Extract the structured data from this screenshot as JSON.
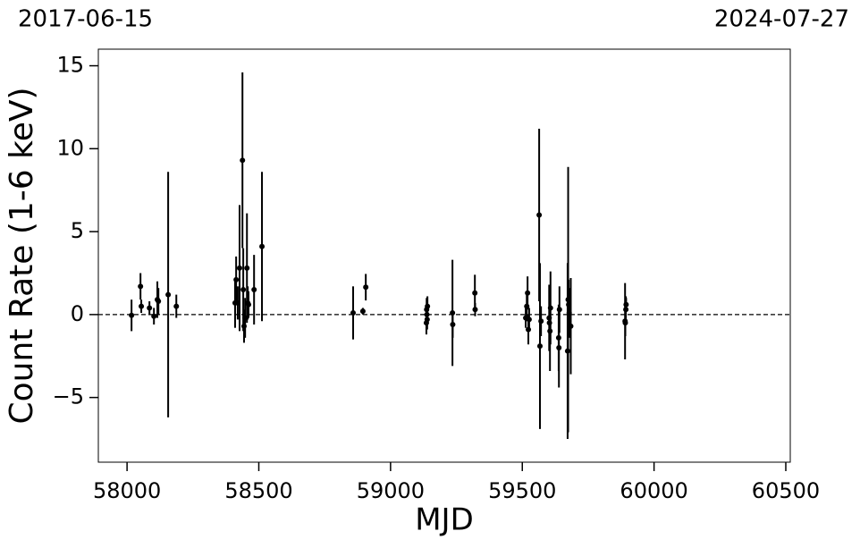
{
  "chart_data": {
    "type": "errorbar",
    "annotations": [
      "2017-06-15",
      "2024-07-27"
    ],
    "xlabel": "MJD",
    "ylabel": "Count Rate (1-6 keV)",
    "xlim": [
      57891,
      60517
    ],
    "ylim": [
      -8.9,
      16
    ],
    "xticks": [
      58000,
      58500,
      59000,
      59500,
      60000,
      60500
    ],
    "yticks": [
      {
        "value": -5,
        "label": "−5"
      },
      0,
      5,
      10,
      15
    ],
    "hline": 0,
    "series": [
      {
        "color": "#000000",
        "x": [
          58017,
          58051,
          58054,
          58085,
          58102,
          58115,
          58119,
          58156,
          58187,
          58410,
          58414,
          58420,
          58427,
          58438,
          58441,
          58444,
          58448,
          58455,
          58458,
          58461,
          58482,
          58512,
          58858,
          58895,
          58906,
          59136,
          59137,
          59138,
          59139,
          59140,
          59235,
          59236,
          59320,
          59321,
          59513,
          59517,
          59520,
          59523,
          59526,
          59564,
          59567,
          59571,
          59602,
          59603,
          59605,
          59607,
          59638,
          59639,
          59641,
          59672,
          59674,
          59676,
          59678,
          59684,
          59890,
          59891,
          59893,
          59894
        ],
        "values": [
          -0.05,
          1.7,
          0.5,
          0.4,
          -0.1,
          0.9,
          0.8,
          1.2,
          0.5,
          0.7,
          2.1,
          0.7,
          2.8,
          9.3,
          1.5,
          -0.7,
          -0.2,
          2.8,
          0.7,
          0.6,
          1.5,
          4.1,
          0.1,
          0.2,
          1.65,
          -0.5,
          0.3,
          0,
          -0.3,
          0.5,
          0.1,
          -0.6,
          1.3,
          0.3,
          -0.2,
          0.5,
          1.3,
          -0.9,
          -0.3,
          6.0,
          -1.9,
          -0.4,
          -0.2,
          -0.5,
          -1.0,
          0.4,
          -1.4,
          -2.0,
          0.3,
          -2.2,
          0.9,
          0.6,
          0.1,
          -0.7,
          -0.4,
          -0.5,
          0.3,
          0.6
        ],
        "errors": [
          0.95,
          0.8,
          0.4,
          0.4,
          0.5,
          1.1,
          0.8,
          7.4,
          0.7,
          1.5,
          1.4,
          1.0,
          3.8,
          5.3,
          2.5,
          1.0,
          1.2,
          3.3,
          1.0,
          0.8,
          2.1,
          4.5,
          1.6,
          0.2,
          0.8,
          0.7,
          0.7,
          0.8,
          0.6,
          0.6,
          3.2,
          0.8,
          1.1,
          0.4,
          0.6,
          0.9,
          1.0,
          0.9,
          0.7,
          5.2,
          5.0,
          0.9,
          2.0,
          1.0,
          2.4,
          2.2,
          2.0,
          2.4,
          1.4,
          5.3,
          8.0,
          1.5,
          1.5,
          2.9,
          2.3,
          0.8,
          0.8,
          0.4
        ]
      }
    ]
  }
}
